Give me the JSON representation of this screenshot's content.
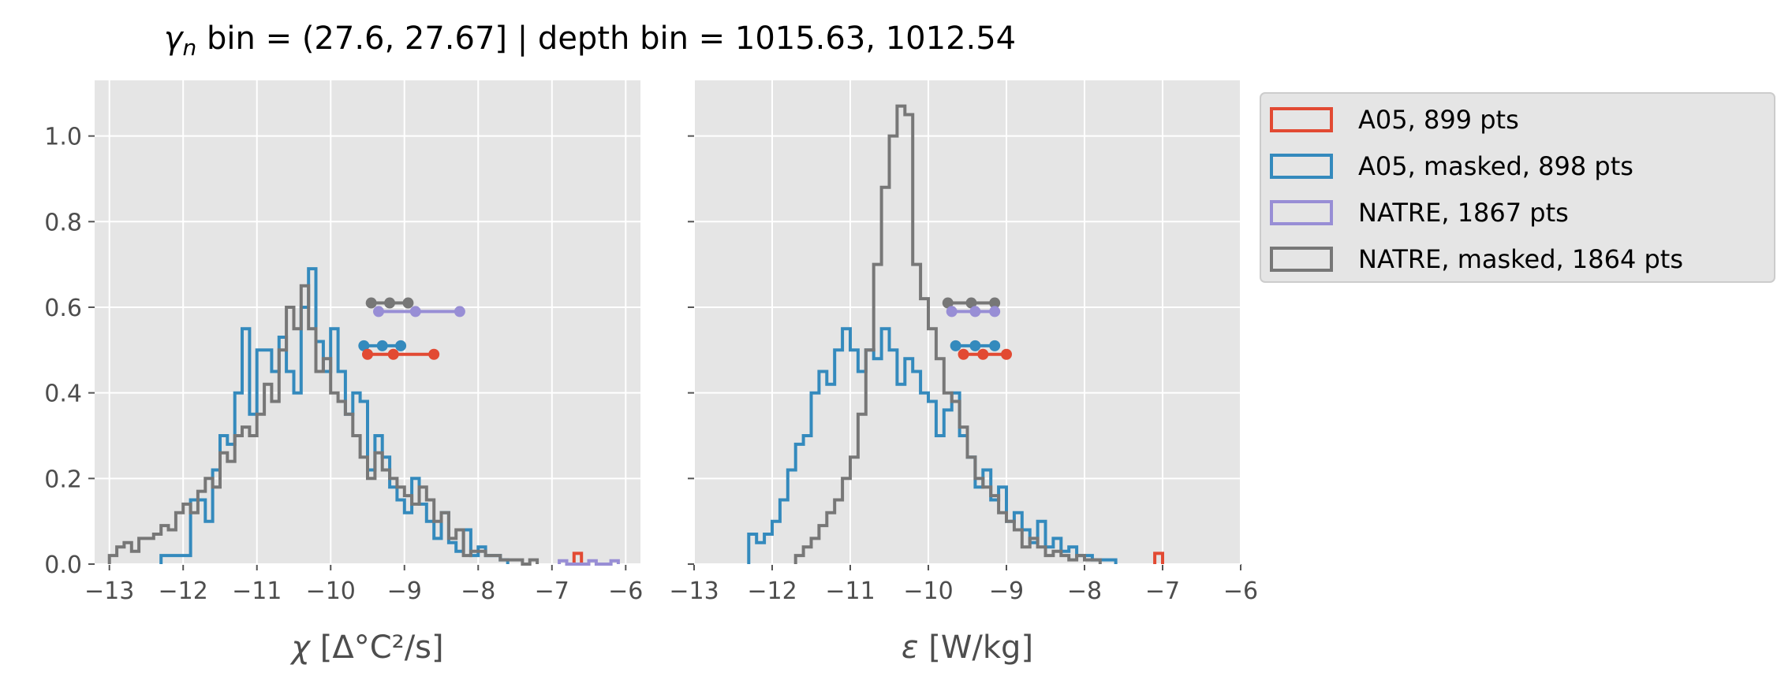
{
  "figure": {
    "title_symbol": "γ",
    "title_subscript": "n",
    "title_rest": " bin = (27.6, 27.67] | depth bin = 1015.63, 1012.54"
  },
  "chart_data": [
    {
      "type": "histogram",
      "panel": "left",
      "xlabel": "χ [Δ°C²/s]",
      "ylabel": "",
      "xlim": [
        -13.2,
        -5.8
      ],
      "ylim": [
        0,
        1.13
      ],
      "xticks": [
        -13,
        -12,
        -11,
        -10,
        -9,
        -8,
        -7,
        -6
      ],
      "xtick_labels": [
        "−13",
        "−12",
        "−11",
        "−10",
        "−9",
        "−8",
        "−7",
        "−6"
      ],
      "yticks": [
        0.0,
        0.2,
        0.4,
        0.6,
        0.8,
        1.0
      ],
      "ytick_labels": [
        "0.0",
        "0.2",
        "0.4",
        "0.6",
        "0.8",
        "1.0"
      ],
      "grid": true,
      "series": [
        {
          "name": "A05, masked",
          "color": "#348ABD",
          "bin_start": -12.3,
          "bin_width": 0.1,
          "values": [
            0.02,
            0.02,
            0.02,
            0.02,
            0.15,
            0.15,
            0.1,
            0.22,
            0.3,
            0.28,
            0.4,
            0.55,
            0.35,
            0.5,
            0.5,
            0.45,
            0.53,
            0.45,
            0.4,
            0.6,
            0.69,
            0.52,
            0.45,
            0.55,
            0.45,
            0.35,
            0.4,
            0.38,
            0.22,
            0.3,
            0.25,
            0.18,
            0.15,
            0.12,
            0.2,
            0.14,
            0.1,
            0.06,
            0.12,
            0.05,
            0.03,
            0.08,
            0.02,
            0.04,
            0.02,
            0.02,
            0.01
          ]
        },
        {
          "name": "NATRE, masked",
          "color": "#777777",
          "bin_start": -13.0,
          "bin_width": 0.1,
          "values": [
            0.02,
            0.04,
            0.05,
            0.03,
            0.06,
            0.06,
            0.07,
            0.09,
            0.08,
            0.12,
            0.14,
            0.12,
            0.17,
            0.2,
            0.18,
            0.26,
            0.24,
            0.3,
            0.32,
            0.3,
            0.35,
            0.42,
            0.38,
            0.5,
            0.6,
            0.55,
            0.65,
            0.55,
            0.45,
            0.48,
            0.4,
            0.38,
            0.35,
            0.3,
            0.25,
            0.2,
            0.26,
            0.22,
            0.2,
            0.18,
            0.16,
            0.14,
            0.18,
            0.15,
            0.1,
            0.12,
            0.06,
            0.08,
            0.02,
            0.03,
            0.03,
            0.02,
            0.02,
            0.01,
            0.01,
            0.01,
            0.0,
            0.01
          ]
        },
        {
          "name": "A05 tail",
          "color": "#E24A33",
          "bin_start": -6.7,
          "bin_width": 0.1,
          "values": [
            0.025
          ]
        },
        {
          "name": "NATRE tail",
          "color": "#988ED5",
          "bin_start": -6.9,
          "bin_width": 0.1,
          "values": [
            0.008,
            0.0,
            0.0,
            0.0,
            0.008,
            0.0,
            0.0,
            0.008
          ]
        }
      ],
      "markers": [
        {
          "name": "NATRE, masked",
          "color": "#777777",
          "y": 0.61,
          "x": [
            -9.45,
            -9.2,
            -8.95
          ]
        },
        {
          "name": "NATRE",
          "color": "#988ED5",
          "y": 0.59,
          "x": [
            -9.35,
            -8.85,
            -8.25
          ]
        },
        {
          "name": "A05, masked",
          "color": "#348ABD",
          "y": 0.51,
          "x": [
            -9.55,
            -9.3,
            -9.05
          ]
        },
        {
          "name": "A05",
          "color": "#E24A33",
          "y": 0.49,
          "x": [
            -9.5,
            -9.15,
            -8.6
          ]
        }
      ]
    },
    {
      "type": "histogram",
      "panel": "right",
      "xlabel": "ε [W/kg]",
      "ylabel": "",
      "xlim": [
        -13.0,
        -6.0
      ],
      "ylim": [
        0,
        1.13
      ],
      "xticks": [
        -13,
        -12,
        -11,
        -10,
        -9,
        -8,
        -7,
        -6
      ],
      "xtick_labels": [
        "−13",
        "−12",
        "−11",
        "−10",
        "−9",
        "−8",
        "−7",
        "−6"
      ],
      "yticks": [
        0.0,
        0.2,
        0.4,
        0.6,
        0.8,
        1.0
      ],
      "ytick_labels": [
        "",
        "",
        "",
        "",
        "",
        ""
      ],
      "grid": true,
      "series": [
        {
          "name": "A05, masked",
          "color": "#348ABD",
          "bin_start": -12.3,
          "bin_width": 0.1,
          "values": [
            0.07,
            0.05,
            0.07,
            0.1,
            0.15,
            0.22,
            0.28,
            0.3,
            0.4,
            0.45,
            0.42,
            0.5,
            0.55,
            0.5,
            0.45,
            0.5,
            0.48,
            0.55,
            0.5,
            0.42,
            0.48,
            0.45,
            0.4,
            0.38,
            0.3,
            0.36,
            0.4,
            0.3,
            0.25,
            0.18,
            0.22,
            0.15,
            0.18,
            0.1,
            0.12,
            0.08,
            0.05,
            0.1,
            0.04,
            0.06,
            0.03,
            0.04,
            0.02,
            0.02,
            0.01,
            0.01,
            0.01
          ]
        },
        {
          "name": "NATRE, masked",
          "color": "#777777",
          "bin_start": -11.7,
          "bin_width": 0.1,
          "values": [
            0.02,
            0.04,
            0.06,
            0.09,
            0.12,
            0.15,
            0.2,
            0.25,
            0.35,
            0.5,
            0.7,
            0.88,
            1.0,
            1.07,
            1.05,
            0.7,
            0.62,
            0.55,
            0.48,
            0.4,
            0.38,
            0.32,
            0.25,
            0.2,
            0.18,
            0.16,
            0.12,
            0.1,
            0.08,
            0.04,
            0.06,
            0.04,
            0.02,
            0.03,
            0.02,
            0.01,
            0.02,
            0.01,
            0.01
          ]
        },
        {
          "name": "A05 tail",
          "color": "#E24A33",
          "bin_start": -7.1,
          "bin_width": 0.1,
          "values": [
            0.025
          ]
        }
      ],
      "markers": [
        {
          "name": "NATRE, masked",
          "color": "#777777",
          "y": 0.61,
          "x": [
            -9.75,
            -9.45,
            -9.15
          ]
        },
        {
          "name": "NATRE",
          "color": "#988ED5",
          "y": 0.59,
          "x": [
            -9.7,
            -9.4,
            -9.15
          ]
        },
        {
          "name": "A05, masked",
          "color": "#348ABD",
          "y": 0.51,
          "x": [
            -9.65,
            -9.4,
            -9.15
          ]
        },
        {
          "name": "A05",
          "color": "#E24A33",
          "y": 0.49,
          "x": [
            -9.55,
            -9.3,
            -9.0
          ]
        }
      ]
    }
  ],
  "legend": {
    "placement": "upper-right-outside",
    "items": [
      {
        "label": "A05, 899 pts",
        "color": "#E24A33"
      },
      {
        "label": "A05, masked,  898 pts",
        "color": "#348ABD"
      },
      {
        "label": "NATRE, 1867 pts",
        "color": "#988ED5"
      },
      {
        "label": "NATRE, masked,  1864 pts",
        "color": "#777777"
      }
    ]
  }
}
